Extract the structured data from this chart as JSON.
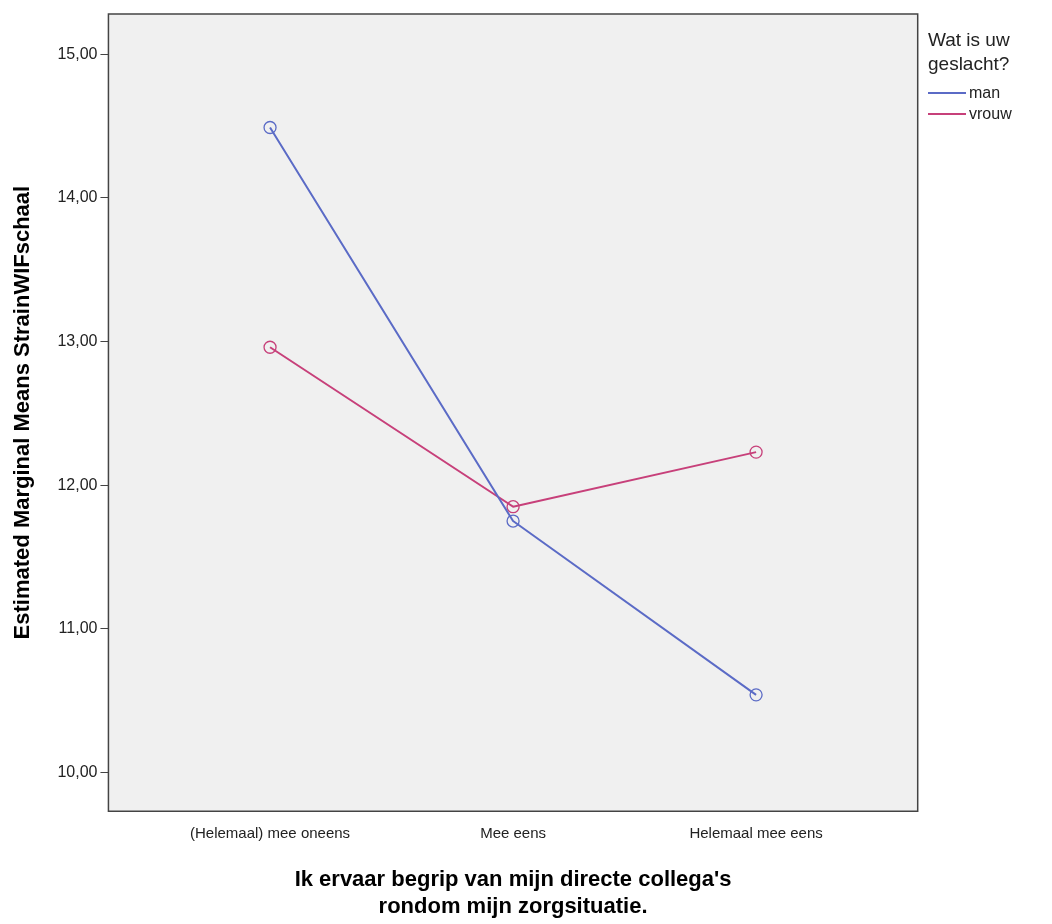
{
  "chart_data": {
    "type": "line",
    "xlabel": "Ik ervaar begrip van mijn directe collega's rondom mijn zorgsituatie.",
    "ylabel": "Estimated Marginal Means StrainWIFschaal",
    "legend_title": "Wat is uw geslacht?",
    "categories": [
      "(Helemaal) mee oneens",
      "Mee eens",
      "Helemaal mee eens"
    ],
    "series": [
      {
        "name": "man",
        "color": "#5b6bc6",
        "values": [
          14.49,
          11.75,
          10.54
        ]
      },
      {
        "name": "vrouw",
        "color": "#c7407a",
        "values": [
          12.96,
          11.85,
          12.23
        ]
      }
    ],
    "ylim": [
      9.73,
      15.28
    ],
    "yticks": [
      {
        "value": 10,
        "label": "10,00"
      },
      {
        "value": 11,
        "label": "11,00"
      },
      {
        "value": 12,
        "label": "12,00"
      },
      {
        "value": 13,
        "label": "13,00"
      },
      {
        "value": 14,
        "label": "14,00"
      },
      {
        "value": 15,
        "label": "15,00"
      }
    ],
    "grid": false,
    "legend": "top right",
    "marker": "circle",
    "line_style": "solid"
  }
}
